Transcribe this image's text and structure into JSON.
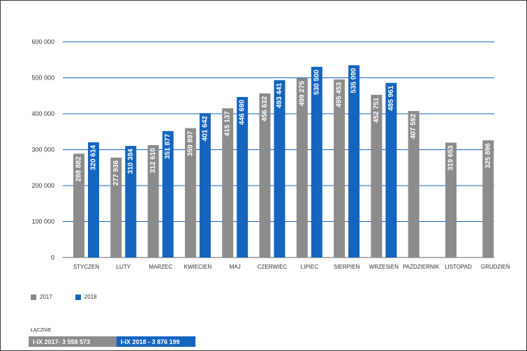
{
  "colors": {
    "s2017": "#8c8c8c",
    "s2018": "#1565c0",
    "grid": "#1565c0",
    "text": "#333333"
  },
  "chart_data": {
    "type": "bar",
    "categories": [
      "STYCZEŃ",
      "LUTY",
      "MARZEC",
      "KWIECIEŃ",
      "MAJ",
      "CZERWIEC",
      "LIPIEC",
      "SIERPIEŃ",
      "WRZESIEŃ",
      "PAŹDZIERNIK",
      "LISTOPAD",
      "GRUDZIEŃ"
    ],
    "series": [
      {
        "name": "2017",
        "values": [
          288882,
          277936,
          312610,
          359897,
          415137,
          456632,
          499275,
          495453,
          452751,
          407592,
          319653,
          325896
        ],
        "labels": [
          "288 882",
          "277 936",
          "312 610",
          "359 897",
          "415 137",
          "456 632",
          "499 275",
          "495 453",
          "452 751",
          "407 592",
          "319 653",
          "325 896"
        ]
      },
      {
        "name": "2018",
        "values": [
          320614,
          310384,
          351877,
          401642,
          446690,
          493441,
          530500,
          535090,
          485961,
          null,
          null,
          null
        ],
        "labels": [
          "320 614",
          "310 384",
          "351 877",
          "401 642",
          "446 690",
          "493 441",
          "530 500",
          "535 090",
          "485 961",
          null,
          null,
          null
        ]
      }
    ],
    "yticks": [
      0,
      100000,
      200000,
      300000,
      400000,
      500000,
      600000
    ],
    "ytick_labels": [
      "0",
      "100 000",
      "200 000",
      "300 000",
      "400 000",
      "500 000",
      "600 000"
    ],
    "ylim": [
      0,
      600000
    ],
    "grid": true,
    "legend_position": "bottom-left"
  },
  "legend": {
    "label_2017": "2017",
    "label_2018": "2018"
  },
  "totals": {
    "heading": "ŁĄCZNIE",
    "t2017": "I-IX 2017- 3 558 573",
    "t2018": "I-IX 2018 - 3 876 199"
  }
}
